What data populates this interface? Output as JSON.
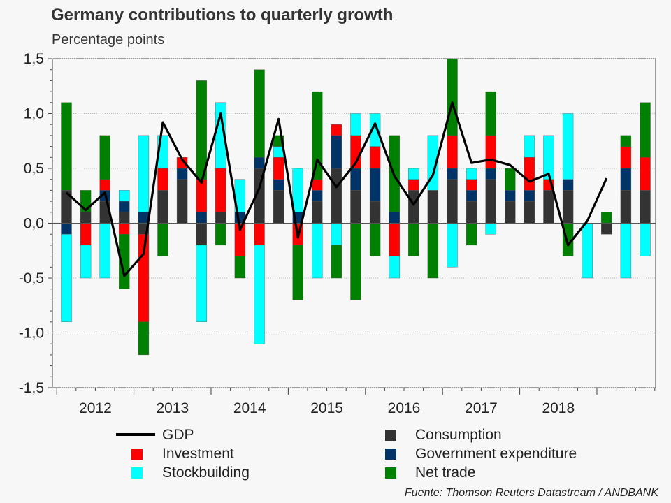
{
  "title": "Germany contributions to quarterly growth",
  "subtitle": "Percentage points",
  "source": "Fuente: Thomson Reuters Datastream / ANDBANK",
  "colors": {
    "Consumption": "#333333",
    "Government expenditure": "#003366",
    "Investment": "#ff0000",
    "Stockbuilding": "#00ffff",
    "Net trade": "#008000",
    "GDP": "#000000"
  },
  "legend": {
    "gdp": "GDP",
    "consumption": "Consumption",
    "investment": "Investment",
    "government": "Government expenditure",
    "stockbuilding": "Stockbuilding",
    "net_trade": "Net trade"
  },
  "chart_data": {
    "type": "bar",
    "stacked": true,
    "title": "Germany contributions to quarterly growth",
    "subtitle": "Percentage points",
    "ylim": [
      -1.5,
      1.5
    ],
    "y_ticks": [
      "-1,5",
      "-1,0",
      "-0,5",
      "0,0",
      "0,5",
      "1,0",
      "1,5"
    ],
    "x_year_labels": [
      "2012",
      "2013",
      "2014",
      "2015",
      "2016",
      "2017",
      "2018"
    ],
    "grid": true,
    "categories": [
      "2012Q1",
      "2012Q2",
      "2012Q3",
      "2012Q4",
      "2013Q1",
      "2013Q2",
      "2013Q3",
      "2013Q4",
      "2014Q1",
      "2014Q2",
      "2014Q3",
      "2014Q4",
      "2015Q1",
      "2015Q2",
      "2015Q3",
      "2015Q4",
      "2016Q1",
      "2016Q2",
      "2016Q3",
      "2016Q4",
      "2017Q1",
      "2017Q2",
      "2017Q3",
      "2017Q4",
      "2018Q1",
      "2018Q2",
      "2018Q3",
      "2018Q4",
      "2019Q1",
      "2019Q2",
      "2019Q3"
    ],
    "series": [
      {
        "name": "Consumption",
        "values": [
          0.3,
          0.1,
          0.2,
          0.1,
          -0.1,
          0.3,
          0.4,
          -0.2,
          0.1,
          0.0,
          0.5,
          0.3,
          0.0,
          0.2,
          0.5,
          0.3,
          0.2,
          0.0,
          0.3,
          0.3,
          0.4,
          0.2,
          0.4,
          0.2,
          0.2,
          0.3,
          0.3,
          0.0,
          -0.1,
          0.3,
          0.3
        ]
      },
      {
        "name": "Government expenditure",
        "values": [
          -0.1,
          0.0,
          0.1,
          0.1,
          0.1,
          0.0,
          0.1,
          0.1,
          0.0,
          0.1,
          0.1,
          0.1,
          0.1,
          0.1,
          0.3,
          0.2,
          0.3,
          0.1,
          0.0,
          0.0,
          0.1,
          0.1,
          0.1,
          0.1,
          0.1,
          0.0,
          0.1,
          0.0,
          0.0,
          0.2,
          0.0
        ]
      },
      {
        "name": "Investment",
        "values": [
          0.0,
          -0.2,
          0.1,
          -0.1,
          -0.8,
          0.2,
          0.1,
          0.3,
          0.4,
          -0.3,
          -0.2,
          0.2,
          -0.2,
          0.1,
          0.1,
          0.3,
          0.2,
          -0.3,
          0.1,
          0.0,
          0.3,
          0.1,
          0.3,
          0.0,
          0.3,
          0.1,
          0.0,
          0.0,
          0.0,
          0.2,
          0.3
        ]
      },
      {
        "name": "Stockbuilding",
        "values": [
          -0.8,
          -0.3,
          -0.5,
          0.1,
          0.7,
          0.3,
          0.0,
          -0.7,
          0.6,
          0.3,
          -0.9,
          0.1,
          0.4,
          -0.5,
          -0.2,
          0.2,
          0.3,
          -0.2,
          0.1,
          0.5,
          -0.4,
          0.1,
          -0.1,
          0.0,
          0.2,
          0.4,
          0.6,
          -0.5,
          0.0,
          -0.5,
          -0.3
        ]
      },
      {
        "name": "Net trade",
        "values": [
          0.8,
          0.2,
          0.4,
          -0.5,
          -0.3,
          -0.3,
          0.0,
          0.9,
          -0.2,
          -0.2,
          0.8,
          0.1,
          -0.5,
          0.8,
          -0.3,
          -0.7,
          -0.3,
          0.7,
          -0.3,
          -0.5,
          0.7,
          -0.2,
          0.4,
          0.2,
          0.0,
          0.0,
          -0.3,
          0.0,
          0.1,
          0.1,
          0.5
        ]
      },
      {
        "name": "GDP",
        "type": "line",
        "values": [
          0.28,
          0.12,
          0.28,
          -0.48,
          -0.28,
          0.92,
          0.58,
          0.37,
          1.0,
          -0.06,
          0.32,
          0.95,
          -0.13,
          0.58,
          0.33,
          0.55,
          0.91,
          0.43,
          0.17,
          0.44,
          1.1,
          0.55,
          0.58,
          0.53,
          0.38,
          0.45,
          -0.2,
          0.02,
          0.41,
          null,
          null
        ]
      }
    ]
  }
}
